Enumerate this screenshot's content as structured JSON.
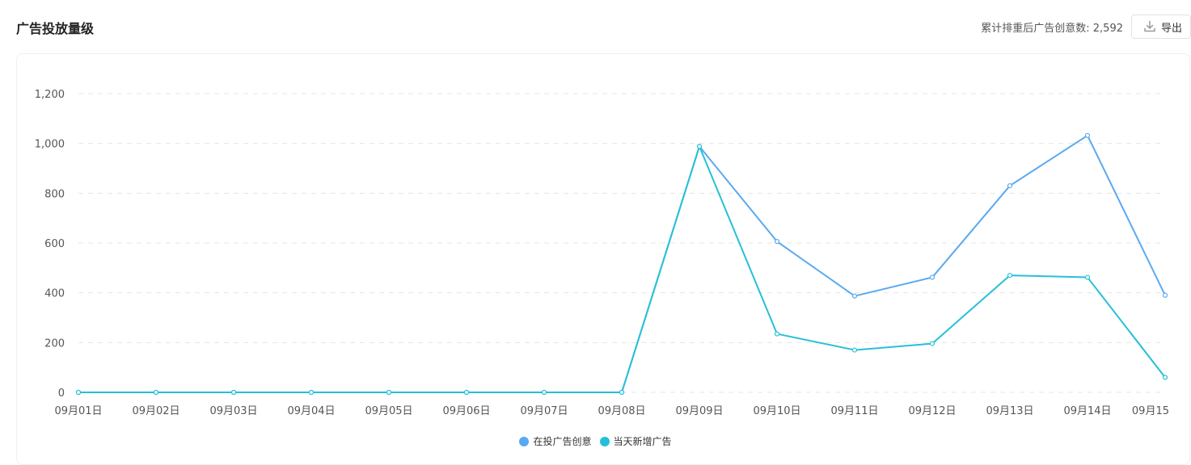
{
  "header": {
    "title": "广告投放量级",
    "total_label": "累计排重后广告创意数:",
    "total_value": "2,592",
    "export_label": "导出"
  },
  "chart_data": {
    "type": "line",
    "title": "",
    "categories": [
      "09月01日",
      "09月02日",
      "09月03日",
      "09月04日",
      "09月05日",
      "09月06日",
      "09月07日",
      "09月08日",
      "09月09日",
      "09月10日",
      "09月11日",
      "09月12日",
      "09月13日",
      "09月14日",
      "09月15"
    ],
    "series": [
      {
        "name": "在投广告创意",
        "color": "#5aa9f0",
        "values": [
          0,
          0,
          0,
          0,
          0,
          0,
          0,
          0,
          988,
          606,
          387,
          462,
          830,
          1032,
          390
        ]
      },
      {
        "name": "当天新增广告",
        "color": "#26c0d6",
        "values": [
          0,
          0,
          0,
          0,
          0,
          0,
          0,
          0,
          988,
          235,
          170,
          196,
          470,
          462,
          60
        ]
      }
    ],
    "y_ticks": [
      "0",
      "200",
      "400",
      "600",
      "800",
      "1,000",
      "1,200"
    ],
    "ylim": [
      0,
      1200
    ],
    "grid": true,
    "legend_position": "bottom"
  }
}
